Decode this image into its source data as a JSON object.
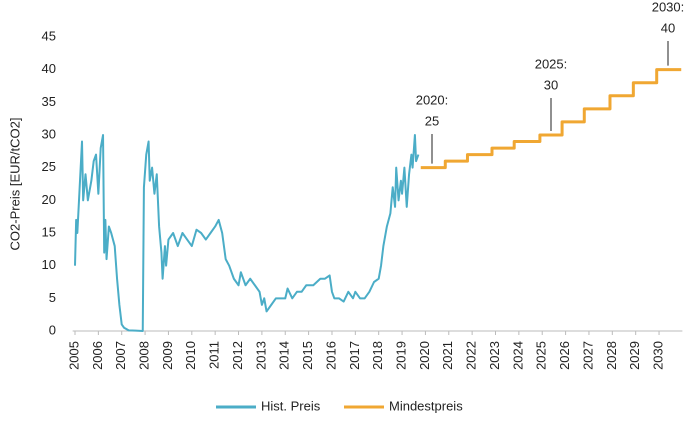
{
  "chart_data": {
    "type": "line",
    "y_label": "CO2-Preis [EUR/tCO2]",
    "xlim": [
      2004.9,
      2031.0
    ],
    "xticks": [
      2005,
      2006,
      2007,
      2008,
      2009,
      2010,
      2011,
      2012,
      2013,
      2014,
      2015,
      2016,
      2017,
      2018,
      2019,
      2020,
      2021,
      2022,
      2023,
      2024,
      2025,
      2026,
      2027,
      2028,
      2029,
      2030
    ],
    "ylim": [
      0,
      45
    ],
    "yticks": [
      0,
      5,
      10,
      15,
      20,
      25,
      30,
      35,
      40,
      45
    ],
    "grid": false,
    "legend": "bottom",
    "series": [
      {
        "name": "Hist. Preis",
        "color": "#4badc7",
        "step": false,
        "x": [
          2005.0,
          2005.05,
          2005.1,
          2005.2,
          2005.3,
          2005.35,
          2005.45,
          2005.55,
          2005.7,
          2005.8,
          2005.9,
          2006.0,
          2006.1,
          2006.2,
          2006.25,
          2006.3,
          2006.35,
          2006.45,
          2006.55,
          2006.7,
          2006.8,
          2006.9,
          2007.0,
          2007.1,
          2007.3,
          2007.6,
          2007.9,
          2007.95,
          2008.05,
          2008.15,
          2008.2,
          2008.3,
          2008.4,
          2008.5,
          2008.6,
          2008.7,
          2008.75,
          2008.85,
          2008.9,
          2009.0,
          2009.2,
          2009.4,
          2009.6,
          2009.8,
          2010.0,
          2010.2,
          2010.4,
          2010.6,
          2010.8,
          2011.0,
          2011.15,
          2011.3,
          2011.45,
          2011.6,
          2011.8,
          2012.0,
          2012.1,
          2012.3,
          2012.5,
          2012.7,
          2012.9,
          2013.0,
          2013.1,
          2013.2,
          2013.4,
          2013.6,
          2013.8,
          2014.0,
          2014.1,
          2014.3,
          2014.5,
          2014.7,
          2014.9,
          2015.2,
          2015.5,
          2015.7,
          2015.9,
          2016.0,
          2016.1,
          2016.3,
          2016.5,
          2016.7,
          2016.9,
          2017.0,
          2017.2,
          2017.4,
          2017.6,
          2017.8,
          2018.0,
          2018.1,
          2018.2,
          2018.35,
          2018.5,
          2018.6,
          2018.7,
          2018.75,
          2018.85,
          2018.95,
          2019.0,
          2019.1,
          2019.2,
          2019.3,
          2019.4,
          2019.45,
          2019.55,
          2019.6,
          2019.7
        ],
        "values": [
          10,
          17,
          15,
          22,
          29,
          20,
          24,
          20,
          23,
          26,
          27,
          21,
          28,
          30,
          12,
          17,
          11,
          16,
          15,
          13,
          8,
          4,
          1,
          0.5,
          0.1,
          0.05,
          0,
          22,
          27,
          29,
          23,
          25,
          21,
          24,
          16,
          12,
          8,
          13,
          10,
          14,
          15,
          13,
          15,
          14,
          13,
          15.5,
          15,
          14,
          15,
          16,
          17,
          15,
          11,
          10,
          8,
          7,
          9,
          7,
          8,
          7,
          6,
          4,
          5,
          3,
          4,
          5,
          5,
          5,
          6.5,
          5,
          6,
          6,
          7,
          7,
          8,
          8,
          8.5,
          6,
          5,
          5,
          4.5,
          6,
          5,
          6,
          5,
          5,
          6,
          7.5,
          8,
          10,
          13,
          16,
          18,
          22,
          19,
          25,
          20,
          23,
          21,
          25,
          19,
          24,
          27,
          25,
          30,
          26,
          27
        ]
      },
      {
        "name": "Mindestpreis",
        "color": "#f0a732",
        "step": true,
        "x": [
          2019.8,
          2020.85,
          2021.8,
          2022.85,
          2023.8,
          2024.9,
          2025.85,
          2026.8,
          2027.9,
          2028.9,
          2029.9,
          2030.95
        ],
        "values": [
          25,
          26,
          27,
          28,
          29,
          30,
          32,
          34,
          36,
          38,
          40,
          40
        ]
      }
    ],
    "annotations": [
      {
        "text": "2020:",
        "value": 25
      },
      {
        "text": "2025:",
        "value": 30
      },
      {
        "text": "2030:",
        "value": 40
      }
    ]
  }
}
